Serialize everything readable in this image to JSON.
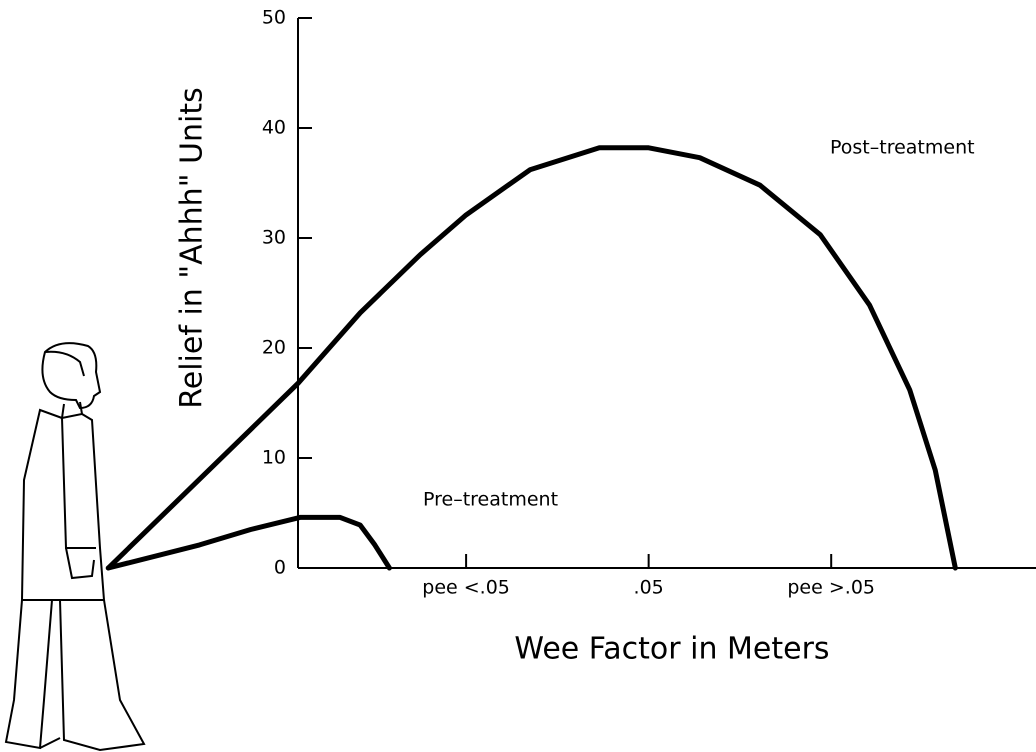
{
  "chart_data": {
    "type": "line",
    "y_label": "Relief in \"Ahhh\" Units",
    "x_label": "Wee Factor in Meters",
    "xlim": [
      -1,
      4.1
    ],
    "ylim": [
      0,
      50
    ],
    "yticks": [
      0,
      10,
      20,
      30,
      40,
      50
    ],
    "xticks": [
      {
        "value": 1,
        "label": "pee <.05"
      },
      {
        "value": 2,
        "label": ".05"
      },
      {
        "value": 3,
        "label": "pee >.05"
      }
    ],
    "grid": false,
    "series": [
      {
        "name": "Post–treatment",
        "color": "#000000",
        "x": [
          -0.96,
          0.08,
          0.42,
          0.75,
          1.0,
          1.35,
          1.73,
          2.0,
          2.28,
          2.61,
          2.94,
          3.21,
          3.43,
          3.57,
          3.68
        ],
        "values": [
          0,
          16.8,
          23.2,
          28.5,
          32.1,
          36.2,
          38.2,
          38.2,
          37.3,
          34.8,
          30.3,
          23.9,
          16.2,
          8.9,
          0
        ]
      },
      {
        "name": "Pre–treatment",
        "color": "#000000",
        "x": [
          -0.96,
          -0.46,
          -0.18,
          0.09,
          0.31,
          0.42,
          0.5,
          0.58
        ],
        "values": [
          0,
          2.1,
          3.5,
          4.6,
          4.6,
          3.9,
          2.1,
          0
        ]
      }
    ]
  }
}
